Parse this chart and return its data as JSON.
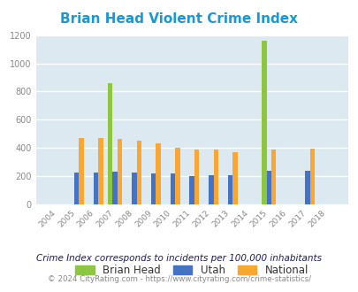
{
  "title": "Brian Head Violent Crime Index",
  "years": [
    2004,
    2005,
    2006,
    2007,
    2008,
    2009,
    2010,
    2011,
    2012,
    2013,
    2014,
    2015,
    2016,
    2017,
    2018
  ],
  "brian_head": [
    0,
    0,
    0,
    857,
    0,
    0,
    0,
    0,
    0,
    0,
    0,
    1160,
    0,
    0,
    0
  ],
  "utah": [
    0,
    225,
    225,
    235,
    225,
    220,
    220,
    198,
    210,
    210,
    0,
    240,
    0,
    240,
    0
  ],
  "national": [
    0,
    469,
    469,
    466,
    454,
    432,
    400,
    390,
    390,
    370,
    0,
    388,
    0,
    395,
    0
  ],
  "brian_head_color": "#8dc63f",
  "utah_color": "#4472c4",
  "national_color": "#faa632",
  "bg_color": "#dce9f0",
  "title_color": "#1899d6",
  "tick_color": "#888888",
  "ylim": [
    0,
    1200
  ],
  "yticks": [
    0,
    200,
    400,
    600,
    800,
    1000,
    1200
  ],
  "subtitle": "Crime Index corresponds to incidents per 100,000 inhabitants",
  "footer": "© 2024 CityRating.com - https://www.cityrating.com/crime-statistics/",
  "subtitle_color": "#1a1a6e",
  "footer_color": "#888888",
  "bar_width": 0.25
}
